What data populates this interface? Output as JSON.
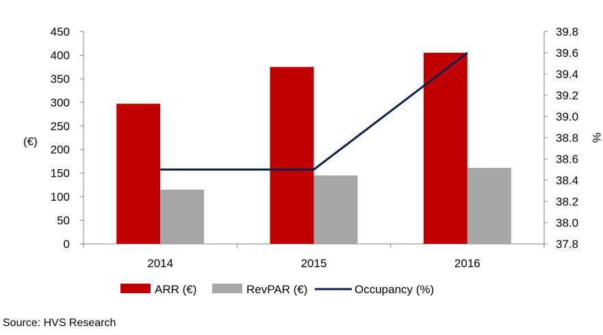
{
  "chart_data": {
    "type": "bar",
    "categories": [
      "2014",
      "2015",
      "2016"
    ],
    "series": [
      {
        "name": "ARR (€)",
        "kind": "bar",
        "axis": "left",
        "color": "#C00000",
        "values": [
          297,
          375,
          405
        ]
      },
      {
        "name": "RevPAR (€)",
        "kind": "bar",
        "axis": "left",
        "color": "#A6A6A6",
        "values": [
          115,
          145,
          161
        ]
      },
      {
        "name": "Occupancy (%)",
        "kind": "line",
        "axis": "right",
        "color": "#0D1F4F",
        "values": [
          38.5,
          38.5,
          39.6
        ]
      }
    ],
    "ylabel_left": "(€)",
    "ylabel_right": "%",
    "ylim_left": [
      0,
      450
    ],
    "yticks_left": [
      "0",
      "50",
      "100",
      "150",
      "200",
      "250",
      "300",
      "350",
      "400",
      "450"
    ],
    "ylim_right": [
      37.8,
      39.8
    ],
    "yticks_right": [
      "37.8",
      "38.0",
      "38.2",
      "38.4",
      "38.6",
      "38.8",
      "39.0",
      "39.2",
      "39.4",
      "39.6",
      "39.8"
    ],
    "legend_position": "bottom",
    "grid": false
  },
  "source": "Source: HVS Research"
}
